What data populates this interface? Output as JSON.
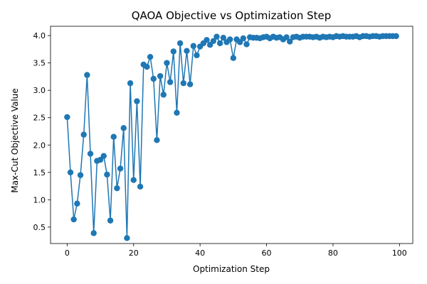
{
  "chart_data": {
    "type": "line",
    "title": "QAOA Objective vs Optimization Step",
    "xlabel": "Optimization Step",
    "ylabel": "Max-Cut Objective Value",
    "xlim": [
      -5,
      104
    ],
    "ylim": [
      0.2,
      4.17
    ],
    "xticks": [
      0,
      20,
      40,
      60,
      80,
      100
    ],
    "yticks": [
      0.5,
      1.0,
      1.5,
      2.0,
      2.5,
      3.0,
      3.5,
      4.0
    ],
    "xtick_labels": [
      "0",
      "20",
      "40",
      "60",
      "80",
      "100"
    ],
    "ytick_labels": [
      "0.5",
      "1.0",
      "1.5",
      "2.0",
      "2.5",
      "3.0",
      "3.5",
      "4.0"
    ],
    "grid": false,
    "markers": true,
    "colors": {
      "series": "#1f77b4"
    },
    "series": [
      {
        "x": [
          0,
          1,
          2,
          3,
          4,
          5,
          6,
          7,
          8,
          9,
          10,
          11,
          12,
          13,
          14,
          15,
          16,
          17,
          18,
          19,
          20,
          21,
          22,
          23,
          24,
          25,
          26,
          27,
          28,
          29,
          30,
          31,
          32,
          33,
          34,
          35,
          36,
          37,
          38,
          39,
          40,
          41,
          42,
          43,
          44,
          45,
          46,
          47,
          48,
          49,
          50,
          51,
          52,
          53,
          54,
          55,
          56,
          57,
          58,
          59,
          60,
          61,
          62,
          63,
          64,
          65,
          66,
          67,
          68,
          69,
          70,
          71,
          72,
          73,
          74,
          75,
          76,
          77,
          78,
          79,
          80,
          81,
          82,
          83,
          84,
          85,
          86,
          87,
          88,
          89,
          90,
          91,
          92,
          93,
          94,
          95,
          96,
          97,
          98,
          99
        ],
        "y": [
          2.51,
          1.5,
          0.64,
          0.93,
          1.45,
          2.19,
          3.28,
          1.84,
          0.39,
          1.71,
          1.73,
          1.8,
          1.46,
          0.62,
          2.15,
          1.21,
          1.57,
          2.31,
          0.3,
          3.13,
          1.36,
          2.8,
          1.24,
          3.47,
          3.43,
          3.61,
          3.21,
          2.09,
          3.26,
          2.92,
          3.5,
          3.15,
          3.71,
          2.59,
          3.86,
          3.13,
          3.72,
          3.11,
          3.81,
          3.64,
          3.8,
          3.86,
          3.92,
          3.83,
          3.9,
          3.98,
          3.86,
          3.96,
          3.88,
          3.93,
          3.59,
          3.93,
          3.88,
          3.95,
          3.84,
          3.97,
          3.96,
          3.96,
          3.95,
          3.97,
          3.98,
          3.95,
          3.98,
          3.96,
          3.97,
          3.93,
          3.97,
          3.89,
          3.97,
          3.98,
          3.96,
          3.98,
          3.98,
          3.98,
          3.97,
          3.98,
          3.96,
          3.98,
          3.97,
          3.98,
          3.97,
          3.99,
          3.98,
          3.99,
          3.98,
          3.98,
          3.98,
          3.99,
          3.97,
          3.99,
          3.99,
          3.98,
          3.99,
          3.99,
          3.98,
          3.99,
          3.99,
          3.99,
          3.99,
          3.99
        ]
      }
    ]
  }
}
